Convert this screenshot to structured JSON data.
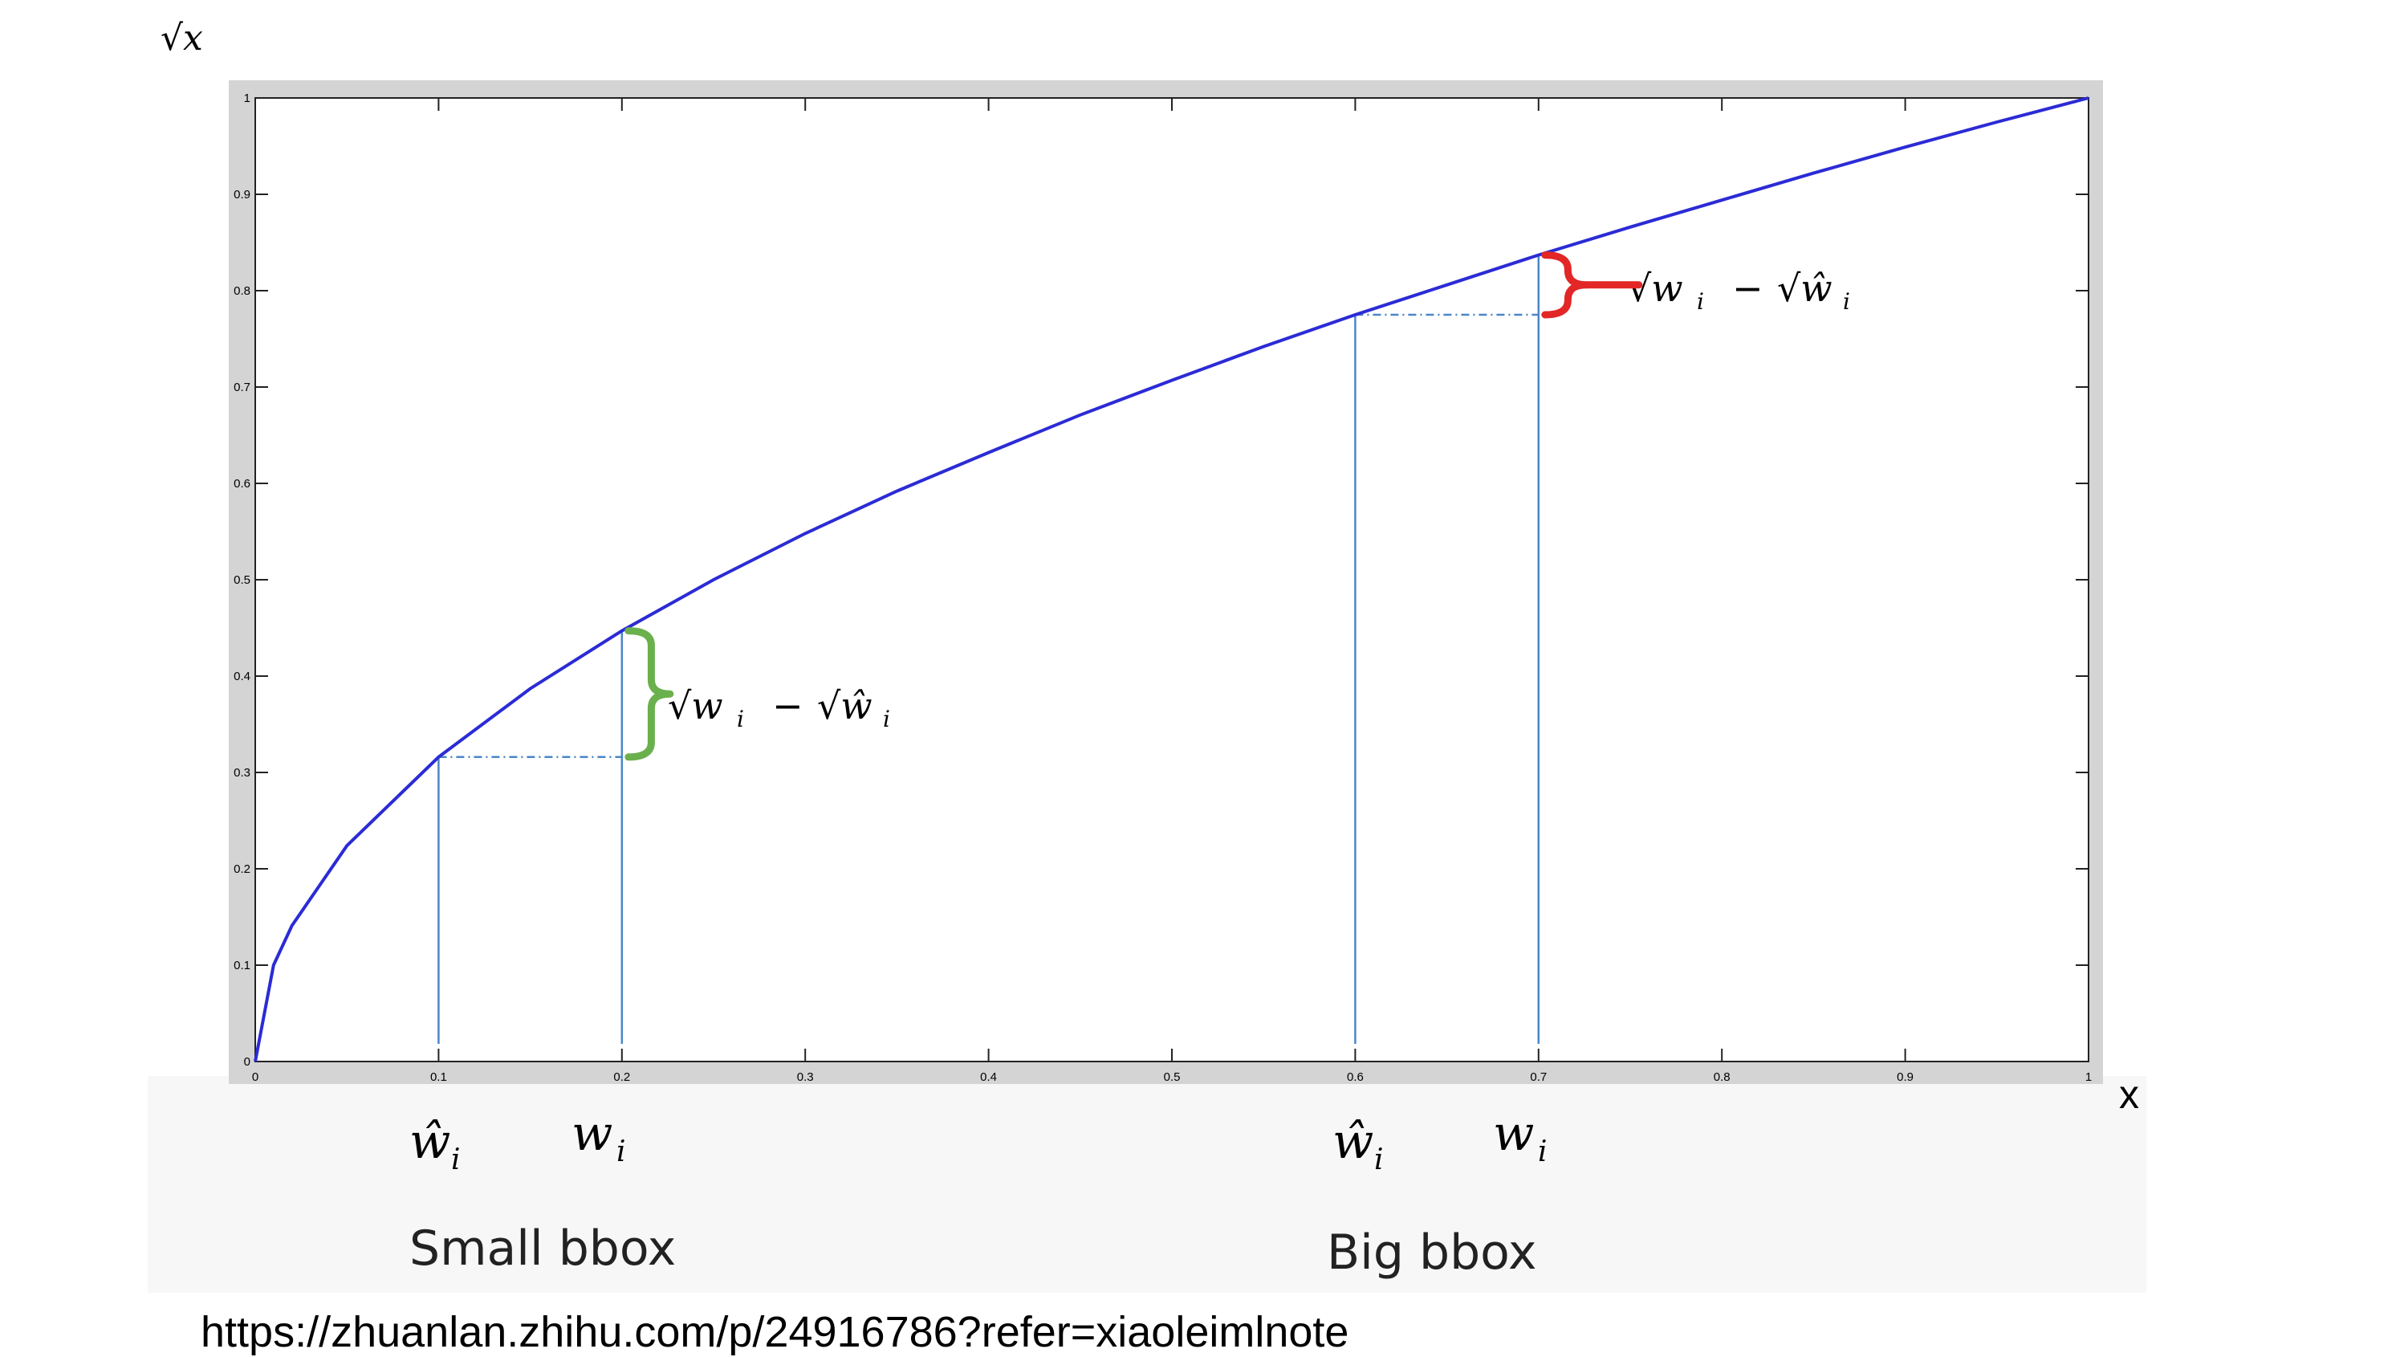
{
  "chart_data": {
    "type": "line",
    "function": "sqrt(x)",
    "xlabel": "x",
    "ylabel": "√x",
    "xlim": [
      0,
      1
    ],
    "ylim": [
      0,
      1
    ],
    "x_ticks": [
      "0",
      "0.1",
      "0.2",
      "0.3",
      "0.4",
      "0.5",
      "0.6",
      "0.7",
      "0.8",
      "0.9",
      "1"
    ],
    "y_ticks": [
      "0",
      "0.1",
      "0.2",
      "0.3",
      "0.4",
      "0.5",
      "0.6",
      "0.7",
      "0.8",
      "0.9",
      "1"
    ],
    "series": [
      {
        "x": [
          0,
          0.01,
          0.02,
          0.05,
          0.1,
          0.15,
          0.2,
          0.25,
          0.3,
          0.35,
          0.4,
          0.45,
          0.5,
          0.55,
          0.6,
          0.65,
          0.7,
          0.75,
          0.8,
          0.85,
          0.9,
          0.95,
          1.0
        ],
        "y": [
          0,
          0.1,
          0.141,
          0.224,
          0.316,
          0.387,
          0.447,
          0.5,
          0.548,
          0.592,
          0.632,
          0.671,
          0.707,
          0.742,
          0.775,
          0.806,
          0.837,
          0.866,
          0.894,
          0.922,
          0.949,
          0.975,
          1.0
        ],
        "color": "#2b2bd6"
      }
    ],
    "annotations": [
      {
        "group": "small",
        "w_hat_x": 0.1,
        "w_x": 0.2,
        "w_hat_y": 0.316,
        "w_y": 0.447,
        "brace_color": "#6ab04c"
      },
      {
        "group": "big",
        "w_hat_x": 0.6,
        "w_x": 0.7,
        "w_hat_y": 0.775,
        "w_y": 0.837,
        "brace_color": "#e32626"
      }
    ],
    "guide_color": "#4a86c8"
  },
  "labels": {
    "y_axis": "√x",
    "x_axis": "x",
    "diff_expr_w": "√w",
    "diff_expr_sub": "i",
    "diff_expr_minus": "−",
    "diff_expr_what": "√ŵ",
    "w_hat": "ŵ",
    "w": "w",
    "sub_i": "i",
    "small_bbox": "Small bbox",
    "big_bbox": "Big bbox"
  },
  "source_url": "https://zhuanlan.zhihu.com/p/24916786?refer=xiaoleimlnote"
}
